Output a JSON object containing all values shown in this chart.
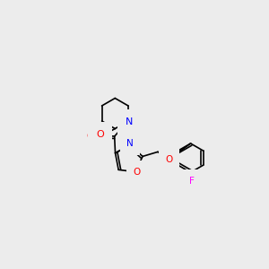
{
  "background_color": "#ececec",
  "bond_color": "#000000",
  "atom_colors": {
    "N": "#0000ff",
    "O": "#ff0000",
    "F": "#ff00ff"
  },
  "font_size": 7.5,
  "bond_width": 1.2
}
